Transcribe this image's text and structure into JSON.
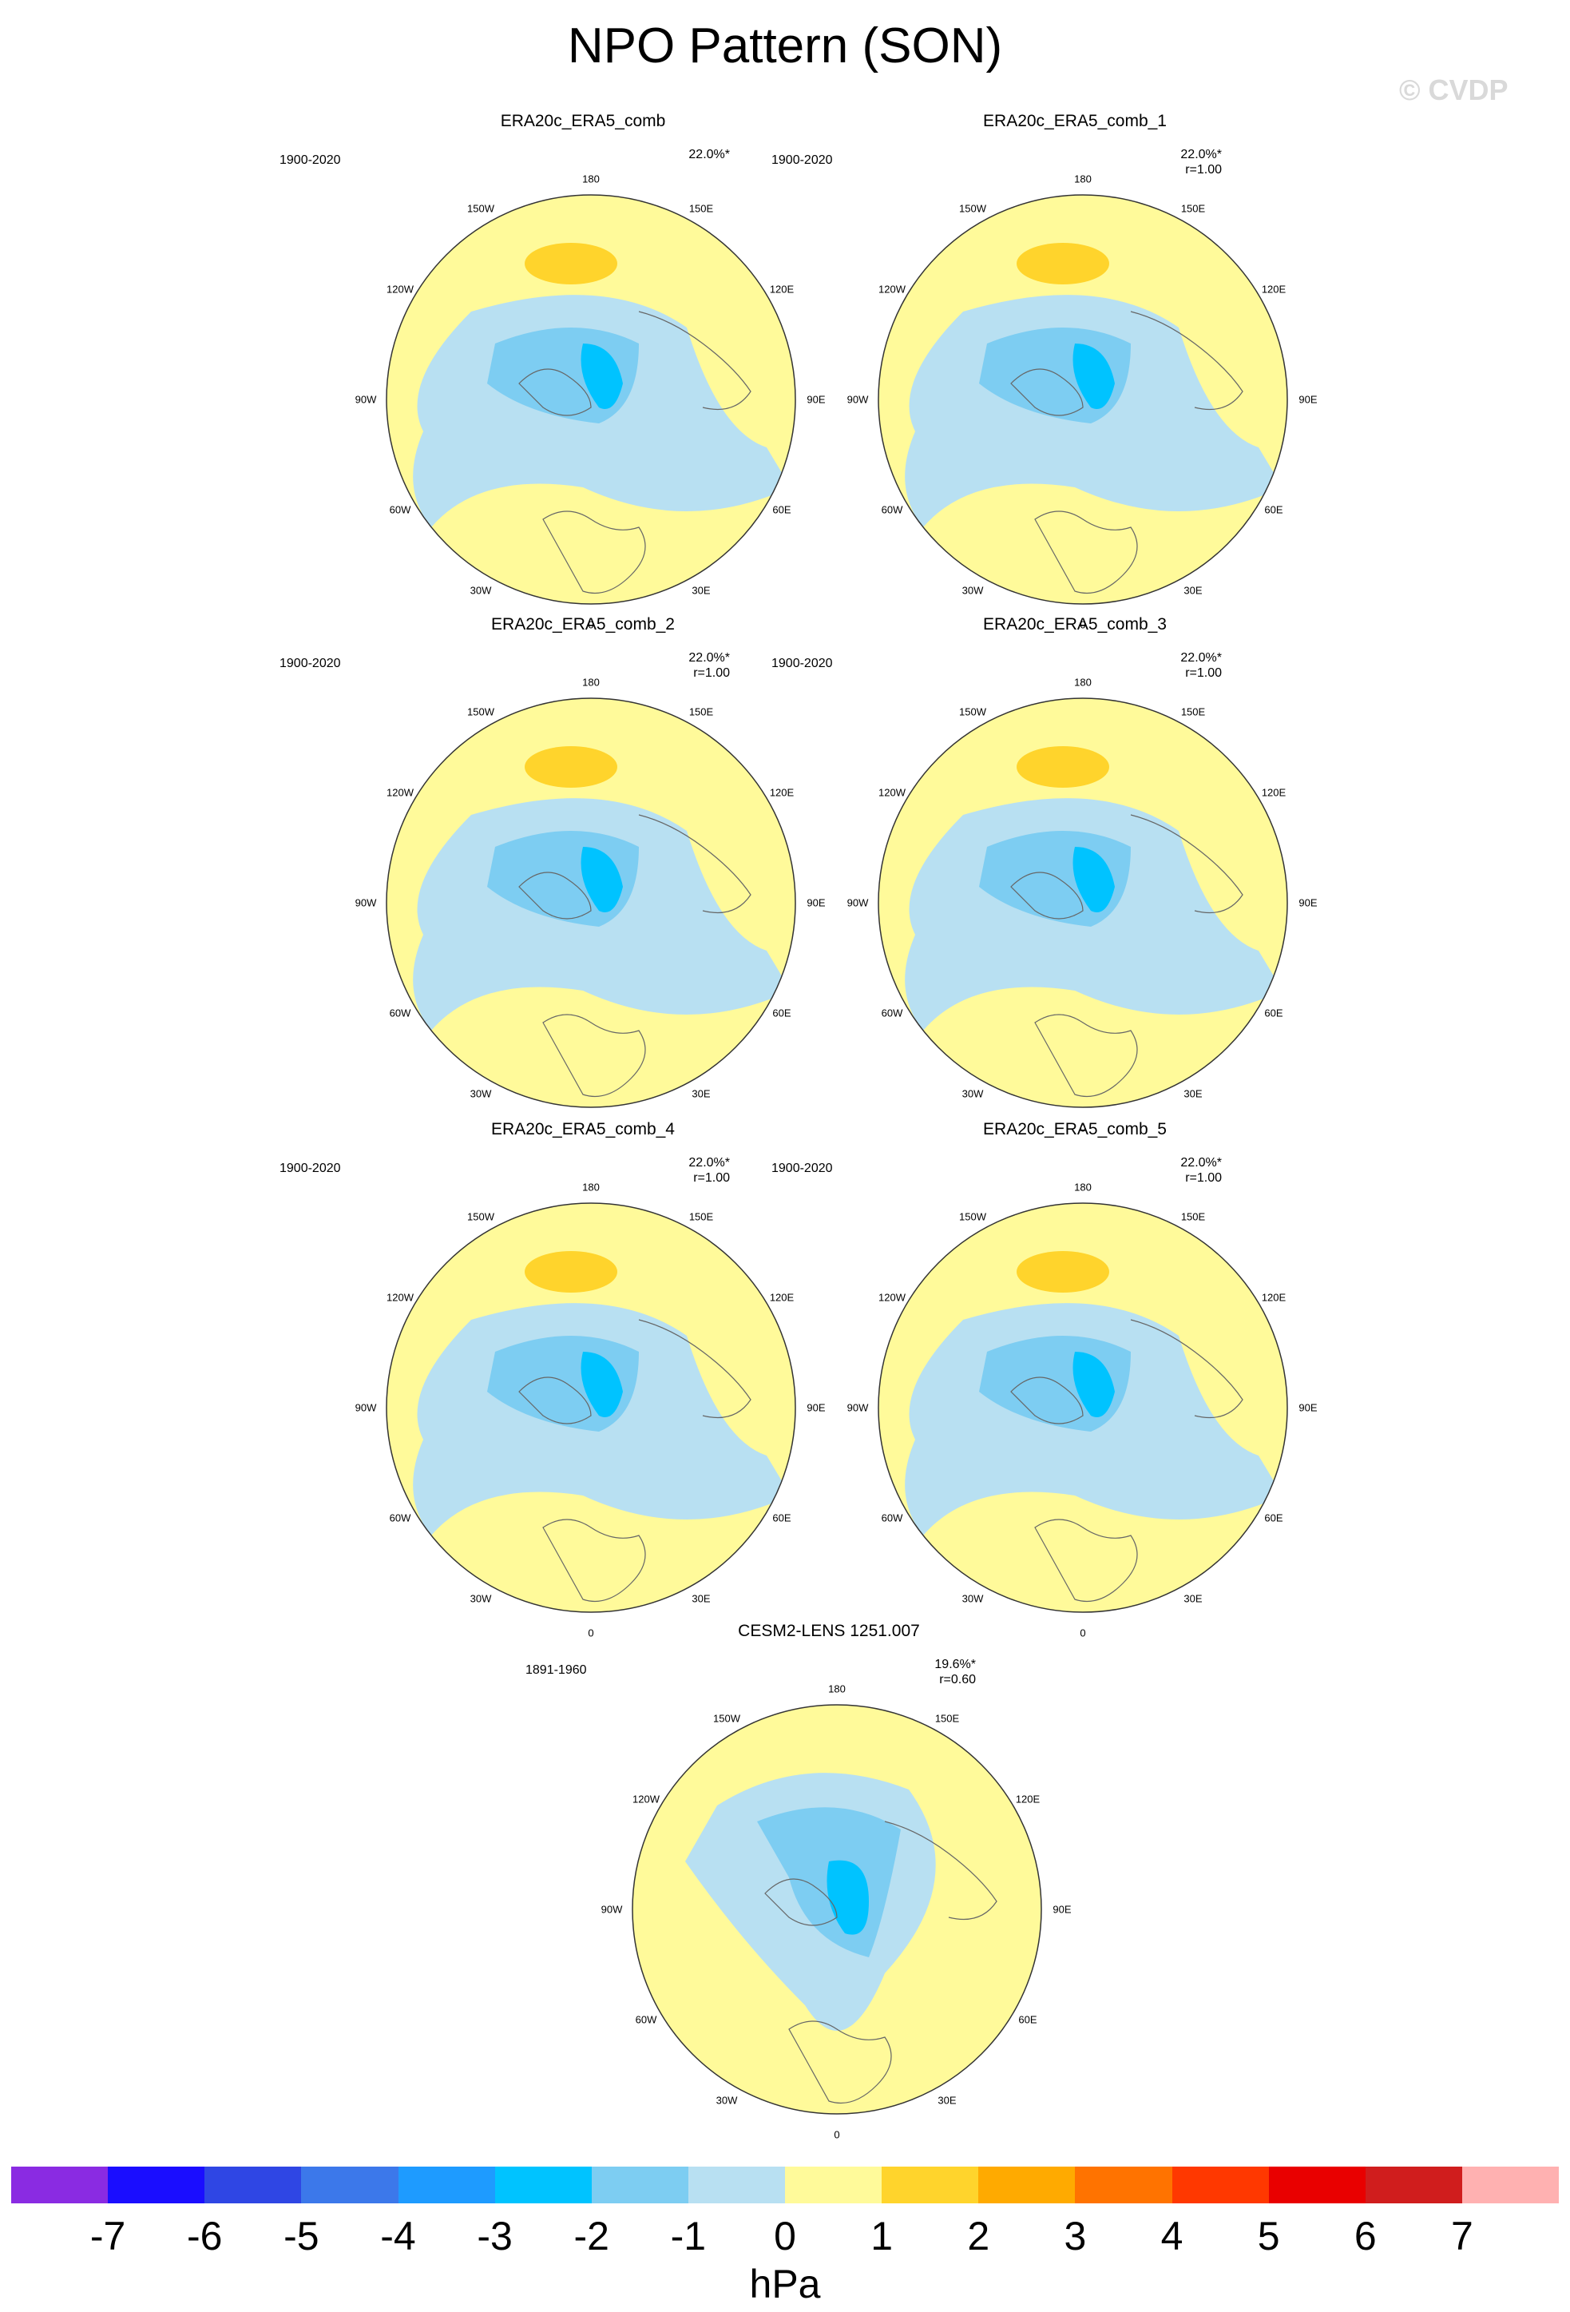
{
  "title": "NPO Pattern (SON)",
  "watermark": "© CVDP",
  "panels": [
    {
      "label": "ERA20c_ERA5_comb",
      "years": "1900-2020",
      "pct": "22.0%*",
      "r": ""
    },
    {
      "label": "ERA20c_ERA5_comb_1",
      "years": "1900-2020",
      "pct": "22.0%*",
      "r": "r=1.00"
    },
    {
      "label": "ERA20c_ERA5_comb_2",
      "years": "1900-2020",
      "pct": "22.0%*",
      "r": "r=1.00"
    },
    {
      "label": "ERA20c_ERA5_comb_3",
      "years": "1900-2020",
      "pct": "22.0%*",
      "r": "r=1.00"
    },
    {
      "label": "ERA20c_ERA5_comb_4",
      "years": "1900-2020",
      "pct": "22.0%*",
      "r": "r=1.00"
    },
    {
      "label": "ERA20c_ERA5_comb_5",
      "years": "1900-2020",
      "pct": "22.0%*",
      "r": "r=1.00"
    },
    {
      "label": "CESM2-LENS 1251.007",
      "years": "1891-1960",
      "pct": "19.6%*",
      "r": "r=0.60"
    }
  ],
  "lon_labels": {
    "n": "180",
    "nne": "150E",
    "ene": "120E",
    "e": "90E",
    "ese": "60E",
    "sse": "30E",
    "s": "0",
    "ssw": "30W",
    "wsw": "60W",
    "w": "90W",
    "wnw": "120W",
    "nnw": "150W"
  },
  "colorbar": {
    "unit": "hPa",
    "ticks": [
      "-7",
      "-6",
      "-5",
      "-4",
      "-3",
      "-2",
      "-1",
      "0",
      "1",
      "2",
      "3",
      "4",
      "5",
      "6",
      "7"
    ],
    "colors": [
      "#8a2be2",
      "#1a0dff",
      "#2f46e4",
      "#3c78ea",
      "#1e9bff",
      "#00c3ff",
      "#7dcdf2",
      "#b8e0f2",
      "#fffa9a",
      "#ffd42c",
      "#ffaa00",
      "#ff7300",
      "#ff3800",
      "#e90000",
      "#d01d1d",
      "#ffb1b1"
    ]
  }
}
